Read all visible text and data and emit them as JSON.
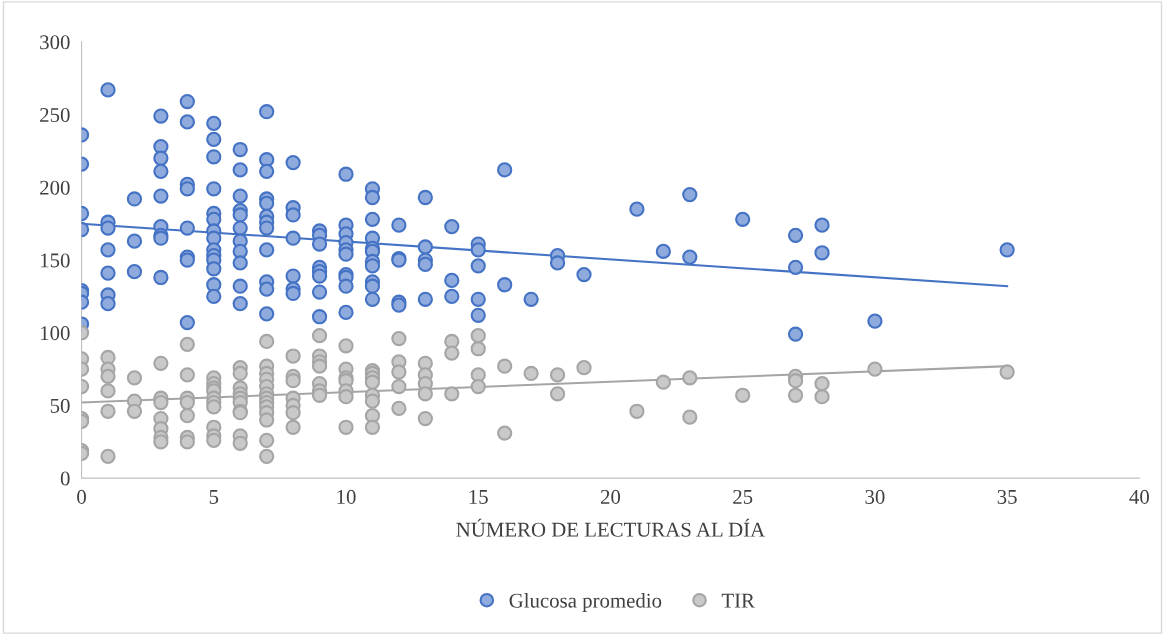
{
  "chart_data": {
    "type": "scatter",
    "xlabel": "NÚMERO DE LECTURAS AL DÍA",
    "xlim": [
      0,
      40
    ],
    "xticks": [
      0,
      5,
      10,
      15,
      20,
      25,
      30,
      35,
      40
    ],
    "ylim": [
      0,
      300
    ],
    "yticks": [
      0,
      50,
      100,
      150,
      200,
      250,
      300
    ],
    "grid": false,
    "legend": "bottom",
    "series": [
      {
        "name": "Glucosa promedio",
        "color": "#4472c4",
        "marker": "circle",
        "x": [
          0,
          0,
          0,
          0,
          0,
          0,
          0,
          0,
          1,
          1,
          1,
          1,
          1,
          1,
          1,
          2,
          2,
          2,
          3,
          3,
          3,
          3,
          3,
          3,
          3,
          3,
          3,
          4,
          4,
          4,
          4,
          4,
          4,
          4,
          4,
          5,
          5,
          5,
          5,
          5,
          5,
          5,
          5,
          5,
          5,
          5,
          5,
          5,
          5,
          6,
          6,
          6,
          6,
          6,
          6,
          6,
          6,
          6,
          6,
          6,
          7,
          7,
          7,
          7,
          7,
          7,
          7,
          7,
          7,
          7,
          7,
          7,
          8,
          8,
          8,
          8,
          8,
          8,
          8,
          9,
          9,
          9,
          9,
          9,
          9,
          9,
          9,
          10,
          10,
          10,
          10,
          10,
          10,
          10,
          10,
          10,
          10,
          11,
          11,
          11,
          11,
          11,
          11,
          11,
          11,
          11,
          11,
          11,
          12,
          12,
          12,
          12,
          12,
          13,
          13,
          13,
          13,
          13,
          14,
          14,
          14,
          15,
          15,
          15,
          15,
          15,
          16,
          16,
          17,
          18,
          18,
          19,
          21,
          22,
          23,
          23,
          25,
          27,
          27,
          27,
          28,
          28,
          30,
          35
        ],
        "values": [
          236,
          216,
          182,
          171,
          129,
          127,
          121,
          106,
          267,
          176,
          172,
          157,
          141,
          126,
          120,
          192,
          163,
          142,
          249,
          228,
          220,
          211,
          194,
          173,
          167,
          165,
          138,
          259,
          245,
          202,
          199,
          172,
          152,
          150,
          107,
          244,
          233,
          221,
          199,
          182,
          178,
          170,
          165,
          157,
          153,
          150,
          144,
          133,
          125,
          226,
          212,
          194,
          184,
          181,
          172,
          163,
          156,
          148,
          132,
          120,
          252,
          219,
          211,
          192,
          189,
          180,
          176,
          172,
          157,
          135,
          130,
          113,
          217,
          186,
          181,
          165,
          139,
          130,
          127,
          170,
          167,
          161,
          145,
          142,
          139,
          128,
          111,
          209,
          174,
          168,
          162,
          157,
          154,
          140,
          138,
          132,
          114,
          199,
          193,
          178,
          165,
          158,
          156,
          149,
          146,
          135,
          132,
          123,
          174,
          151,
          150,
          121,
          119,
          193,
          159,
          150,
          147,
          123,
          173,
          136,
          125,
          161,
          157,
          146,
          123,
          112,
          212,
          133,
          123,
          153,
          148,
          140,
          185,
          156,
          195,
          152,
          178,
          167,
          145,
          99,
          174,
          155,
          108,
          157
        ]
      },
      {
        "name": "TIR",
        "color": "#a5a5a5",
        "marker": "circle",
        "x": [
          0,
          0,
          0,
          0,
          0,
          0,
          0,
          0,
          1,
          1,
          1,
          1,
          1,
          1,
          2,
          2,
          2,
          3,
          3,
          3,
          3,
          3,
          3,
          3,
          4,
          4,
          4,
          4,
          4,
          4,
          4,
          5,
          5,
          5,
          5,
          5,
          5,
          5,
          5,
          5,
          5,
          6,
          6,
          6,
          6,
          6,
          6,
          6,
          6,
          6,
          6,
          7,
          7,
          7,
          7,
          7,
          7,
          7,
          7,
          7,
          7,
          7,
          7,
          7,
          8,
          8,
          8,
          8,
          8,
          8,
          8,
          9,
          9,
          9,
          9,
          9,
          9,
          9,
          10,
          10,
          10,
          10,
          10,
          10,
          10,
          11,
          11,
          11,
          11,
          11,
          11,
          11,
          11,
          12,
          12,
          12,
          12,
          12,
          13,
          13,
          13,
          13,
          13,
          14,
          14,
          14,
          15,
          15,
          15,
          15,
          16,
          16,
          17,
          18,
          18,
          19,
          21,
          22,
          23,
          23,
          25,
          27,
          27,
          27,
          28,
          28,
          30,
          35
        ],
        "values": [
          100,
          82,
          75,
          63,
          41,
          39,
          19,
          17,
          83,
          75,
          70,
          60,
          46,
          15,
          69,
          53,
          46,
          79,
          55,
          52,
          41,
          34,
          28,
          25,
          92,
          71,
          55,
          52,
          43,
          28,
          25,
          69,
          65,
          62,
          60,
          55,
          52,
          49,
          35,
          29,
          26,
          76,
          72,
          62,
          58,
          55,
          52,
          46,
          45,
          29,
          24,
          94,
          77,
          72,
          68,
          63,
          58,
          55,
          52,
          49,
          45,
          40,
          26,
          15,
          84,
          70,
          67,
          55,
          50,
          45,
          35,
          98,
          84,
          80,
          77,
          65,
          60,
          57,
          91,
          75,
          69,
          67,
          60,
          56,
          35,
          74,
          72,
          69,
          66,
          57,
          53,
          43,
          35,
          96,
          80,
          73,
          63,
          48,
          79,
          71,
          65,
          58,
          41,
          94,
          86,
          58,
          98,
          89,
          71,
          63,
          77,
          31,
          72,
          71,
          58,
          76,
          46,
          66,
          69,
          42,
          57,
          70,
          67,
          57,
          65,
          56,
          75,
          73
        ]
      },
      {
        "type": "line",
        "color": "#4472c4",
        "marker": "none",
        "x": [
          0,
          35
        ],
        "values": [
          175,
          132
        ]
      },
      {
        "type": "line",
        "color": "#a5a5a5",
        "marker": "none",
        "x": [
          0,
          35
        ],
        "values": [
          52,
          77
        ]
      }
    ]
  }
}
